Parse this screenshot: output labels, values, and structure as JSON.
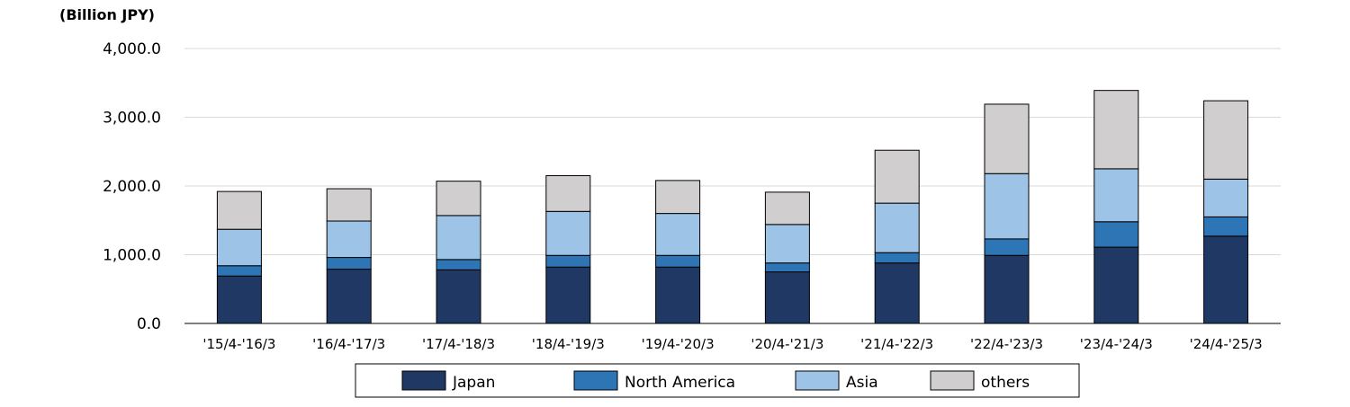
{
  "chart_data": {
    "type": "bar",
    "stacked": true,
    "unit_label": "(Billion JPY)",
    "title": "",
    "xlabel": "",
    "ylabel": "",
    "ylim": [
      0,
      4000
    ],
    "yticks": [
      0,
      1000,
      2000,
      3000,
      4000
    ],
    "ytick_labels": [
      "0.0",
      "1,000.0",
      "2,000.0",
      "3,000.0",
      "4,000.0"
    ],
    "grid": true,
    "legend_position": "bottom",
    "categories": [
      "'15/4-'16/3",
      "'16/4-'17/3",
      "'17/4-'18/3",
      "'18/4-'19/3",
      "'19/4-'20/3",
      "'20/4-'21/3",
      "'21/4-'22/3",
      "'22/4-'23/3",
      "'23/4-'24/3",
      "'24/4-'25/3"
    ],
    "series": [
      {
        "name": "Japan",
        "color": "#1f3864",
        "values": [
          690,
          790,
          780,
          820,
          820,
          750,
          880,
          990,
          1110,
          1270
        ]
      },
      {
        "name": "North America",
        "color": "#2e75b6",
        "values": [
          150,
          170,
          150,
          170,
          170,
          130,
          150,
          240,
          370,
          280
        ]
      },
      {
        "name": "Asia",
        "color": "#9dc3e6",
        "values": [
          530,
          530,
          640,
          640,
          610,
          560,
          720,
          950,
          770,
          550
        ]
      },
      {
        "name": "others",
        "color": "#d0cece",
        "values": [
          550,
          470,
          500,
          520,
          480,
          470,
          770,
          1010,
          1140,
          1140
        ]
      }
    ]
  }
}
